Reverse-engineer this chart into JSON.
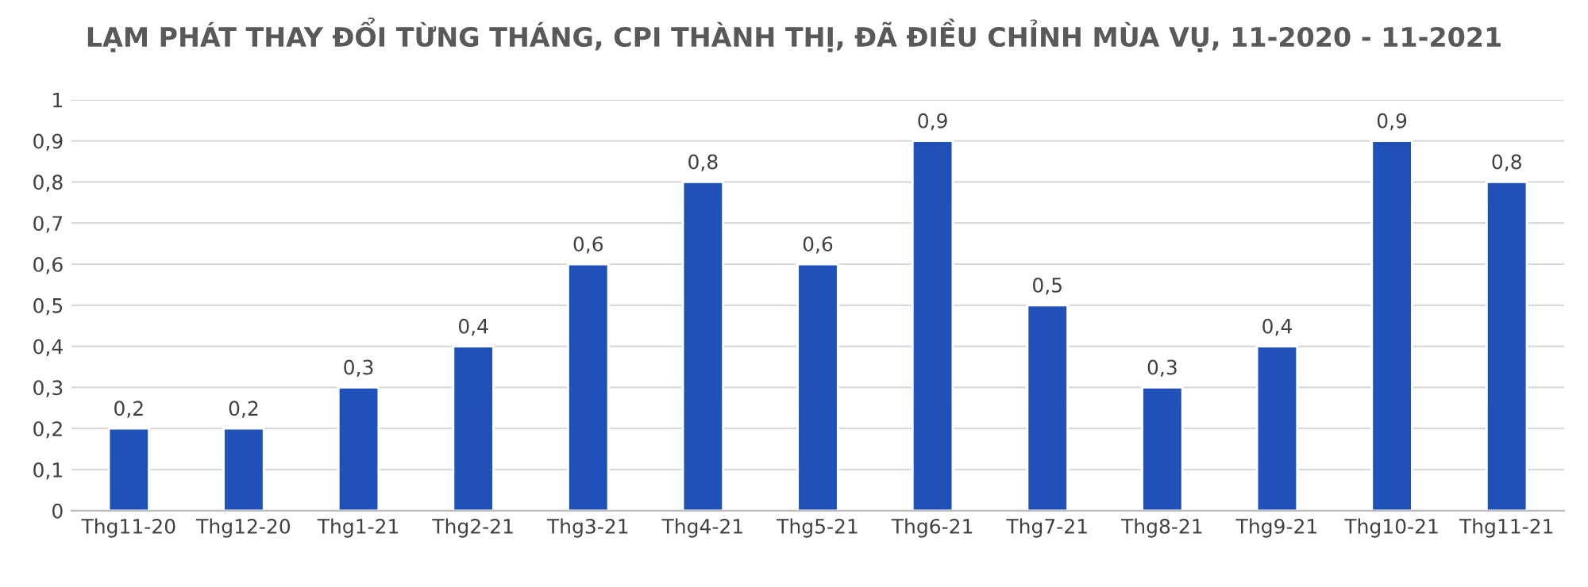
{
  "chart_data": {
    "type": "bar",
    "title": "LẠM PHÁT THAY ĐỔI TỪNG THÁNG, CPI THÀNH THỊ, ĐÃ ĐIỀU CHỈNH MÙA VỤ, 11-2020 - 11-2021",
    "categories": [
      "Thg11-20",
      "Thg12-20",
      "Thg1-21",
      "Thg2-21",
      "Thg3-21",
      "Thg4-21",
      "Thg5-21",
      "Thg6-21",
      "Thg7-21",
      "Thg8-21",
      "Thg9-21",
      "Thg10-21",
      "Thg11-21"
    ],
    "values": [
      0.2,
      0.2,
      0.3,
      0.4,
      0.6,
      0.8,
      0.6,
      0.9,
      0.5,
      0.3,
      0.4,
      0.9,
      0.8
    ],
    "value_labels": [
      "0,2",
      "0,2",
      "0,3",
      "0,4",
      "0,6",
      "0,8",
      "0,6",
      "0,9",
      "0,5",
      "0,3",
      "0,4",
      "0,9",
      "0,8"
    ],
    "color": "#1f51b8",
    "ylim": [
      0,
      1
    ],
    "yticks": [
      0,
      {
        "value": 0.1,
        "label": "0,1"
      },
      {
        "value": 0.2,
        "label": "0,2"
      },
      {
        "value": 0.3,
        "label": "0,3"
      },
      {
        "value": 0.4,
        "label": "0,4"
      },
      {
        "value": 0.5,
        "label": "0,5"
      },
      {
        "value": 0.6,
        "label": "0,6"
      },
      {
        "value": 0.7,
        "label": "0,7"
      },
      {
        "value": 0.8,
        "label": "0,8"
      },
      {
        "value": 0.9,
        "label": "0,9"
      },
      1
    ],
    "grid": "y"
  }
}
